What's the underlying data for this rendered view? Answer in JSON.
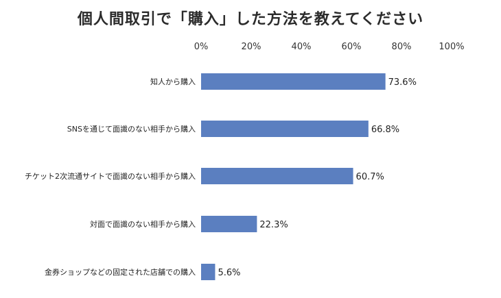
{
  "chart_data": {
    "type": "bar",
    "orientation": "horizontal",
    "title": "個人間取引で「購入」した方法を教えてください",
    "xlim": [
      0,
      100
    ],
    "xticks": [
      "0%",
      "20%",
      "40%",
      "60%",
      "80%",
      "100%"
    ],
    "grid": false,
    "bar_color": "#5b7fc0",
    "categories": [
      "知人から購入",
      "SNSを通じて面識のない相手から購入",
      "チケット2次流通サイトで面識のない相手から購入",
      "対面で面識のない相手から購入",
      "金券ショップなどの固定された店舗での購入"
    ],
    "values": [
      73.6,
      66.8,
      60.7,
      22.3,
      5.6
    ],
    "value_labels": [
      "73.6%",
      "66.8%",
      "60.7%",
      "22.3%",
      "5.6%"
    ]
  }
}
